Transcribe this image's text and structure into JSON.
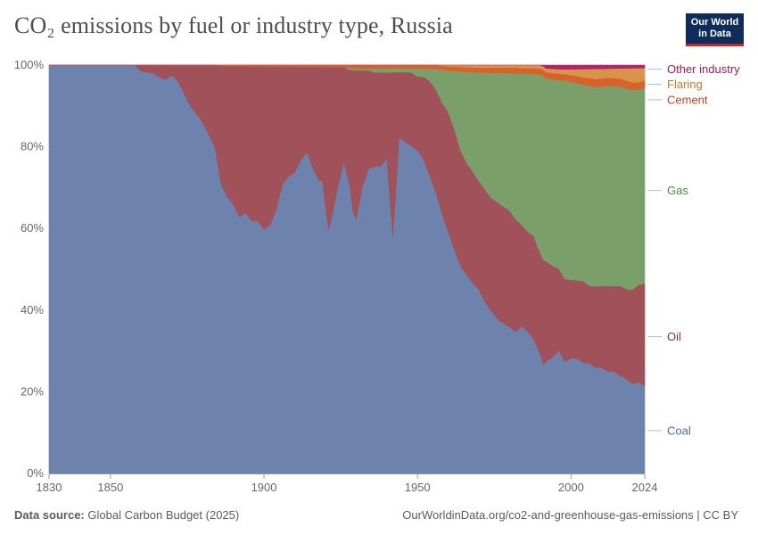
{
  "title": "CO₂ emissions by fuel or industry type, Russia",
  "logo": {
    "line1": "Our World",
    "line2": "in Data"
  },
  "footer": {
    "source_label": "Data source:",
    "source_text": "Global Carbon Budget (2025)",
    "credit": "OurWorldinData.org/co2-and-greenhouse-gas-emissions | CC BY"
  },
  "colors": {
    "coal": "#6d83ad",
    "oil": "#a0515a",
    "gas": "#7a9f6a",
    "cement": "#d9622a",
    "flaring": "#d9934a",
    "other": "#b0246a"
  },
  "chart_data": {
    "type": "area",
    "stacked": "percent",
    "title": "CO₂ emissions by fuel or industry type, Russia",
    "xlim": [
      1830,
      2024
    ],
    "ylim": [
      0,
      100
    ],
    "x_ticks": [
      {
        "value": 1830,
        "label": "1830"
      },
      {
        "value": 1850,
        "label": "1850"
      },
      {
        "value": 1900,
        "label": "1900"
      },
      {
        "value": 1950,
        "label": "1950"
      },
      {
        "value": 2000,
        "label": "2000"
      },
      {
        "value": 2024,
        "label": "2024"
      }
    ],
    "y_ticks": [
      {
        "value": 0,
        "label": "0%"
      },
      {
        "value": 20,
        "label": "20%"
      },
      {
        "value": 40,
        "label": "40%"
      },
      {
        "value": 60,
        "label": "60%"
      },
      {
        "value": 80,
        "label": "80%"
      },
      {
        "value": 100,
        "label": "100%"
      }
    ],
    "grid": true,
    "legend_position": "right",
    "series": [
      {
        "key": "coal",
        "name": "Coal",
        "color": "#6d83ad",
        "points": [
          [
            1830,
            100
          ],
          [
            1858,
            100
          ],
          [
            1860,
            98.5
          ],
          [
            1864,
            98
          ],
          [
            1866,
            97
          ],
          [
            1868,
            96.5
          ],
          [
            1870,
            97.5
          ],
          [
            1872,
            96
          ],
          [
            1874,
            93
          ],
          [
            1876,
            90
          ],
          [
            1878,
            88
          ],
          [
            1880,
            86
          ],
          [
            1882,
            83
          ],
          [
            1884,
            80
          ],
          [
            1886,
            71
          ],
          [
            1888,
            68
          ],
          [
            1890,
            66
          ],
          [
            1892,
            63
          ],
          [
            1894,
            64
          ],
          [
            1896,
            62
          ],
          [
            1898,
            62
          ],
          [
            1900,
            60
          ],
          [
            1902,
            61
          ],
          [
            1904,
            65
          ],
          [
            1906,
            71
          ],
          [
            1908,
            73
          ],
          [
            1910,
            74
          ],
          [
            1912,
            77
          ],
          [
            1914,
            79
          ],
          [
            1916,
            75
          ],
          [
            1918,
            72
          ],
          [
            1919,
            72
          ],
          [
            1920,
            66
          ],
          [
            1921,
            60
          ],
          [
            1922,
            63
          ],
          [
            1924,
            70
          ],
          [
            1926,
            76
          ],
          [
            1928,
            70
          ],
          [
            1929,
            64
          ],
          [
            1930,
            62
          ],
          [
            1932,
            70
          ],
          [
            1934,
            74
          ],
          [
            1936,
            75
          ],
          [
            1938,
            75
          ],
          [
            1939,
            76
          ],
          [
            1940,
            77
          ],
          [
            1941,
            67
          ],
          [
            1942,
            58
          ],
          [
            1943,
            70
          ],
          [
            1944,
            82
          ],
          [
            1946,
            81
          ],
          [
            1948,
            80
          ],
          [
            1950,
            79
          ],
          [
            1952,
            76
          ],
          [
            1954,
            72
          ],
          [
            1956,
            68
          ],
          [
            1958,
            63
          ],
          [
            1960,
            58
          ],
          [
            1962,
            54
          ],
          [
            1964,
            50
          ],
          [
            1966,
            48
          ],
          [
            1968,
            46
          ],
          [
            1970,
            44
          ],
          [
            1972,
            41
          ],
          [
            1974,
            39
          ],
          [
            1976,
            37
          ],
          [
            1978,
            36
          ],
          [
            1980,
            35
          ],
          [
            1982,
            34
          ],
          [
            1984,
            35
          ],
          [
            1986,
            34
          ],
          [
            1988,
            32
          ],
          [
            1989,
            30
          ],
          [
            1990,
            28
          ],
          [
            1991,
            26
          ],
          [
            1992,
            27
          ],
          [
            1994,
            28
          ],
          [
            1996,
            30
          ],
          [
            1998,
            27
          ],
          [
            2000,
            28
          ],
          [
            2002,
            28
          ],
          [
            2004,
            27
          ],
          [
            2006,
            27
          ],
          [
            2008,
            26
          ],
          [
            2010,
            26
          ],
          [
            2012,
            25
          ],
          [
            2014,
            25
          ],
          [
            2016,
            24
          ],
          [
            2018,
            23
          ],
          [
            2020,
            22
          ],
          [
            2022,
            22.5
          ],
          [
            2024,
            21.5
          ]
        ]
      },
      {
        "key": "oil",
        "name": "Oil",
        "color": "#a0515a",
        "points": [
          [
            1830,
            0
          ],
          [
            1858,
            0
          ],
          [
            1860,
            1.5
          ],
          [
            1864,
            2
          ],
          [
            1866,
            3
          ],
          [
            1868,
            3.5
          ],
          [
            1870,
            2.5
          ],
          [
            1872,
            4
          ],
          [
            1874,
            7
          ],
          [
            1876,
            10
          ],
          [
            1878,
            12
          ],
          [
            1880,
            14
          ],
          [
            1882,
            17
          ],
          [
            1884,
            20
          ],
          [
            1886,
            29
          ],
          [
            1888,
            32
          ],
          [
            1890,
            34
          ],
          [
            1892,
            37
          ],
          [
            1894,
            36
          ],
          [
            1896,
            38
          ],
          [
            1898,
            38
          ],
          [
            1900,
            40
          ],
          [
            1902,
            39
          ],
          [
            1904,
            35
          ],
          [
            1906,
            29
          ],
          [
            1908,
            27
          ],
          [
            1910,
            26
          ],
          [
            1912,
            23
          ],
          [
            1914,
            21
          ],
          [
            1916,
            25
          ],
          [
            1918,
            28
          ],
          [
            1919,
            28
          ],
          [
            1920,
            34
          ],
          [
            1921,
            40
          ],
          [
            1922,
            37
          ],
          [
            1924,
            29.5
          ],
          [
            1926,
            23
          ],
          [
            1928,
            28.5
          ],
          [
            1929,
            34.5
          ],
          [
            1930,
            36.5
          ],
          [
            1932,
            28.5
          ],
          [
            1934,
            24
          ],
          [
            1936,
            23
          ],
          [
            1938,
            23
          ],
          [
            1939,
            22
          ],
          [
            1940,
            21
          ],
          [
            1941,
            31
          ],
          [
            1942,
            40
          ],
          [
            1943,
            28
          ],
          [
            1944,
            16
          ],
          [
            1946,
            17
          ],
          [
            1948,
            18
          ],
          [
            1950,
            18
          ],
          [
            1952,
            20
          ],
          [
            1954,
            23
          ],
          [
            1956,
            25
          ],
          [
            1958,
            27
          ],
          [
            1960,
            29
          ],
          [
            1962,
            29
          ],
          [
            1964,
            28
          ],
          [
            1966,
            27
          ],
          [
            1968,
            27
          ],
          [
            1970,
            26
          ],
          [
            1972,
            27
          ],
          [
            1974,
            27
          ],
          [
            1976,
            28
          ],
          [
            1978,
            28
          ],
          [
            1980,
            28
          ],
          [
            1982,
            27
          ],
          [
            1984,
            24
          ],
          [
            1986,
            24
          ],
          [
            1988,
            25
          ],
          [
            1989,
            24
          ],
          [
            1990,
            24
          ],
          [
            1991,
            25
          ],
          [
            1992,
            24
          ],
          [
            1994,
            22
          ],
          [
            1996,
            20
          ],
          [
            1998,
            20
          ],
          [
            2000,
            19
          ],
          [
            2002,
            19
          ],
          [
            2004,
            20
          ],
          [
            2006,
            19
          ],
          [
            2008,
            20
          ],
          [
            2010,
            20
          ],
          [
            2012,
            21
          ],
          [
            2014,
            21
          ],
          [
            2016,
            22
          ],
          [
            2018,
            22
          ],
          [
            2020,
            23
          ],
          [
            2022,
            24
          ],
          [
            2024,
            25
          ]
        ]
      },
      {
        "key": "gas",
        "name": "Gas",
        "color": "#7a9f6a",
        "points": [
          [
            1830,
            0
          ],
          [
            1926,
            0
          ],
          [
            1928,
            0.5
          ],
          [
            1930,
            0.5
          ],
          [
            1932,
            0.5
          ],
          [
            1934,
            0.5
          ],
          [
            1936,
            1
          ],
          [
            1938,
            1
          ],
          [
            1939,
            1
          ],
          [
            1940,
            1
          ],
          [
            1941,
            1
          ],
          [
            1942,
            1
          ],
          [
            1943,
            1
          ],
          [
            1944,
            1
          ],
          [
            1946,
            1
          ],
          [
            1948,
            1
          ],
          [
            1950,
            2
          ],
          [
            1952,
            2
          ],
          [
            1954,
            3
          ],
          [
            1956,
            5
          ],
          [
            1958,
            8
          ],
          [
            1960,
            10
          ],
          [
            1962,
            14
          ],
          [
            1964,
            19
          ],
          [
            1966,
            22
          ],
          [
            1968,
            24
          ],
          [
            1970,
            26
          ],
          [
            1972,
            28
          ],
          [
            1974,
            30
          ],
          [
            1976,
            31
          ],
          [
            1978,
            32
          ],
          [
            1980,
            33
          ],
          [
            1982,
            35
          ],
          [
            1984,
            36
          ],
          [
            1986,
            38
          ],
          [
            1988,
            39
          ],
          [
            1989,
            41
          ],
          [
            1990,
            42
          ],
          [
            1991,
            44
          ],
          [
            1992,
            44
          ],
          [
            1994,
            45
          ],
          [
            1996,
            46
          ],
          [
            1998,
            48
          ],
          [
            2000,
            48
          ],
          [
            2002,
            48
          ],
          [
            2004,
            48
          ],
          [
            2006,
            49
          ],
          [
            2008,
            49
          ],
          [
            2010,
            49
          ],
          [
            2012,
            49
          ],
          [
            2014,
            49
          ],
          [
            2016,
            49
          ],
          [
            2018,
            49
          ],
          [
            2020,
            49
          ],
          [
            2022,
            48
          ],
          [
            2024,
            48
          ]
        ]
      },
      {
        "key": "cement",
        "name": "Cement",
        "color": "#d9622a",
        "points": [
          [
            1830,
            0
          ],
          [
            1884,
            0
          ],
          [
            1886,
            0.2
          ],
          [
            1900,
            0.3
          ],
          [
            1926,
            0.5
          ],
          [
            1930,
            0.8
          ],
          [
            1936,
            0.8
          ],
          [
            1940,
            0.8
          ],
          [
            1944,
            0.7
          ],
          [
            1950,
            0.8
          ],
          [
            1960,
            1.0
          ],
          [
            1970,
            1.2
          ],
          [
            1980,
            1.3
          ],
          [
            1990,
            1.4
          ],
          [
            1994,
            1.5
          ],
          [
            1996,
            1.5
          ],
          [
            2000,
            1.6
          ],
          [
            2004,
            1.8
          ],
          [
            2008,
            2.0
          ],
          [
            2012,
            2.0
          ],
          [
            2016,
            1.9
          ],
          [
            2020,
            1.8
          ],
          [
            2024,
            1.8
          ]
        ]
      },
      {
        "key": "flaring",
        "name": "Flaring",
        "color": "#d9934a",
        "points": [
          [
            1830,
            0
          ],
          [
            1956,
            0
          ],
          [
            1960,
            0.3
          ],
          [
            1966,
            0.5
          ],
          [
            1970,
            0.6
          ],
          [
            1980,
            0.6
          ],
          [
            1986,
            0.7
          ],
          [
            1990,
            0.8
          ],
          [
            1994,
            1.0
          ],
          [
            1998,
            1.2
          ],
          [
            2000,
            1.4
          ],
          [
            2004,
            2.0
          ],
          [
            2008,
            2.5
          ],
          [
            2012,
            2.2
          ],
          [
            2016,
            2.5
          ],
          [
            2018,
            3.0
          ],
          [
            2020,
            3.5
          ],
          [
            2022,
            3.5
          ],
          [
            2024,
            3.0
          ]
        ]
      },
      {
        "key": "other",
        "name": "Other industry",
        "color": "#b0246a",
        "points": [
          [
            1830,
            0
          ],
          [
            1990,
            0
          ],
          [
            1991,
            0.3
          ],
          [
            1992,
            0.8
          ],
          [
            1996,
            1.0
          ],
          [
            2000,
            1.0
          ],
          [
            2010,
            0.9
          ],
          [
            2024,
            0.7
          ]
        ]
      }
    ],
    "legend": [
      {
        "key": "other",
        "label": "Other industry",
        "label_y": 99
      },
      {
        "key": "flaring",
        "label": "Flaring",
        "label_y": 95.3
      },
      {
        "key": "cement",
        "label": "Cement",
        "label_y": 91.5
      },
      {
        "key": "gas",
        "label": "Gas",
        "label_y": 69.3
      },
      {
        "key": "oil",
        "label": "Oil",
        "label_y": 33.5
      },
      {
        "key": "coal",
        "label": "Coal",
        "label_y": 10.5
      }
    ]
  }
}
